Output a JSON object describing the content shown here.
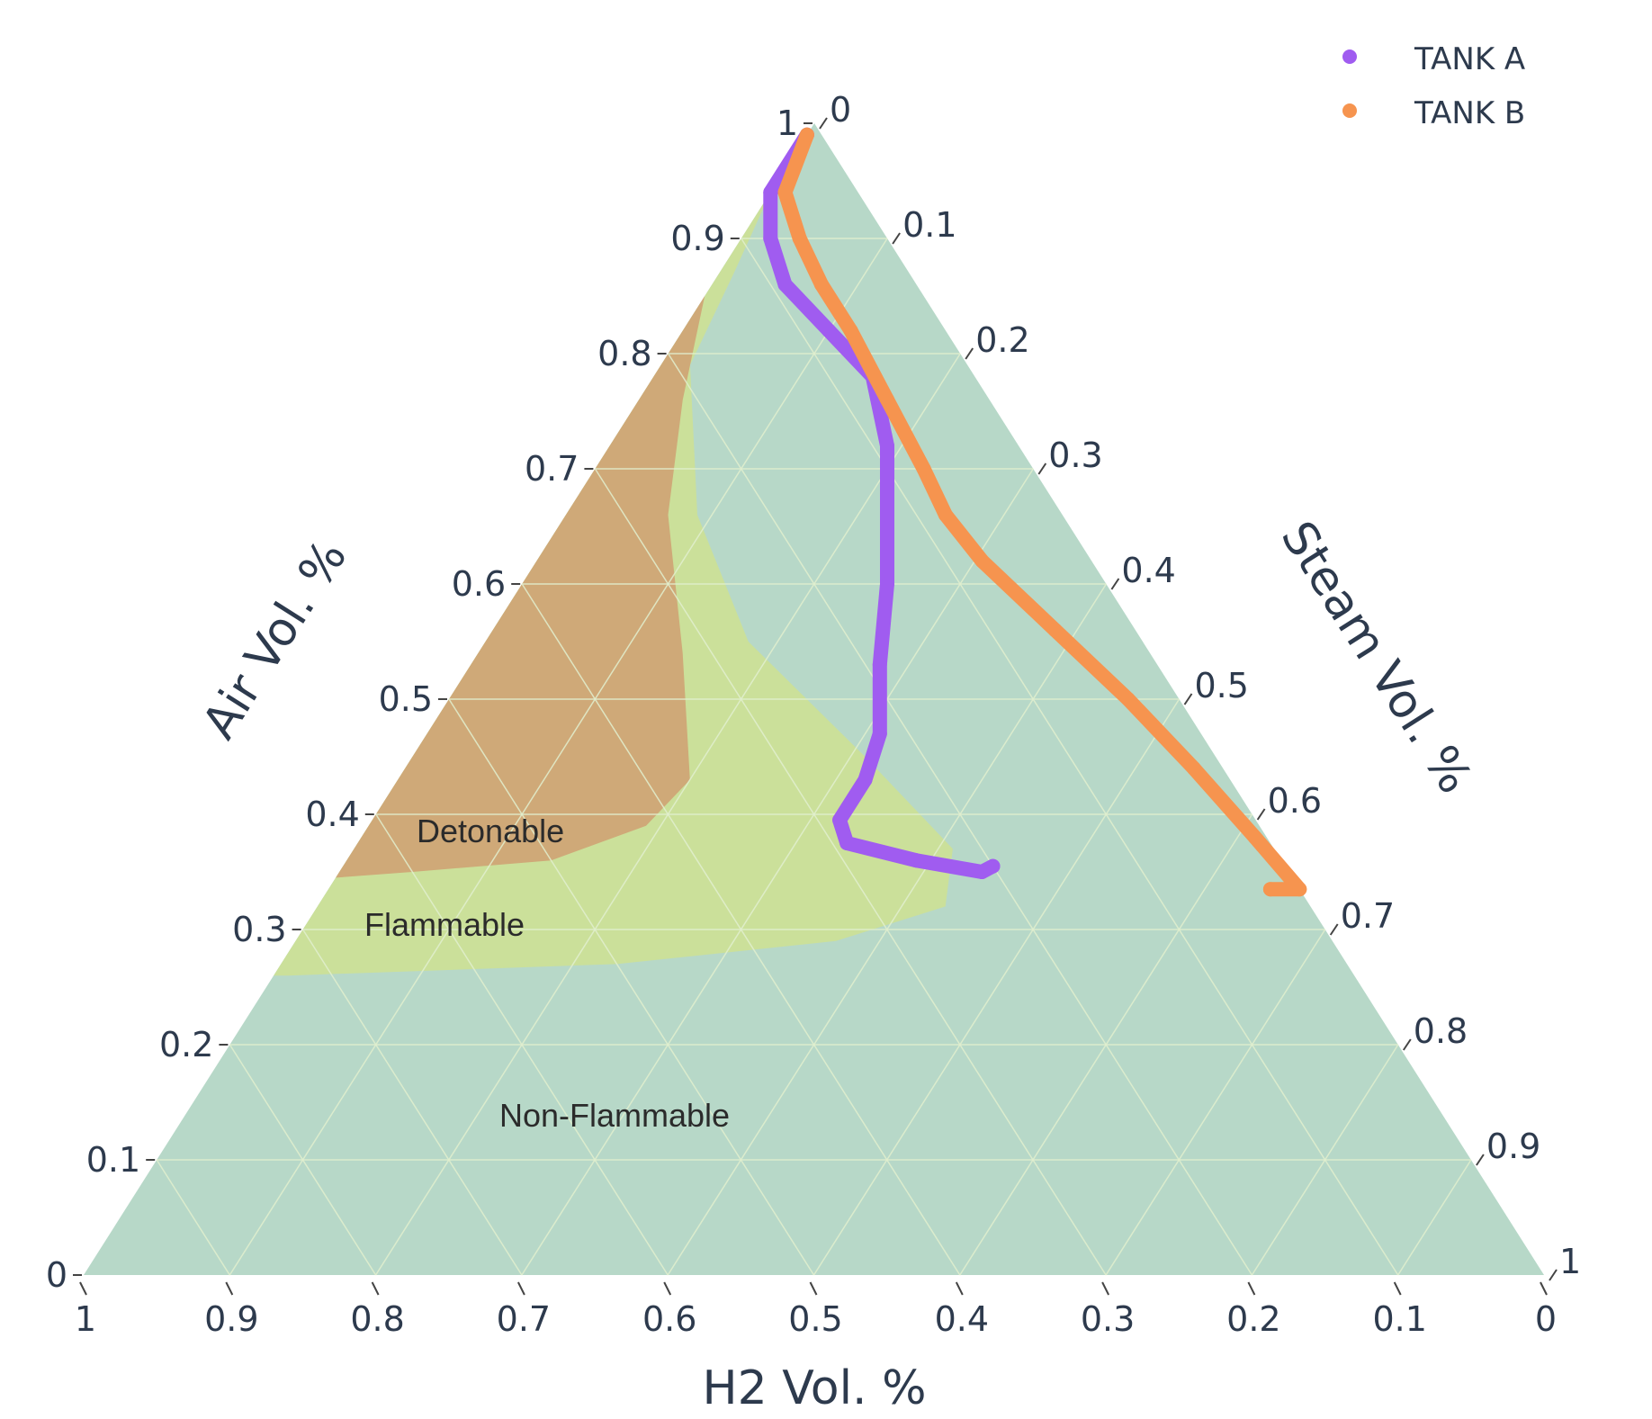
{
  "chart_data": {
    "type": "scatter",
    "subtype": "ternary",
    "axes": {
      "a": {
        "title": "Air Vol. %",
        "range": [
          0,
          1
        ],
        "ticks": [
          "0",
          "0.1",
          "0.2",
          "0.3",
          "0.4",
          "0.5",
          "0.6",
          "0.7",
          "0.8",
          "0.9",
          "1"
        ]
      },
      "b": {
        "title": "H2 Vol. %",
        "range": [
          0,
          1
        ],
        "ticks": [
          "1",
          "0.9",
          "0.8",
          "0.7",
          "0.6",
          "0.5",
          "0.4",
          "0.3",
          "0.2",
          "0.1",
          "0"
        ]
      },
      "c": {
        "title": "Steam Vol. %",
        "range": [
          0,
          1
        ],
        "ticks": [
          "0",
          "0.1",
          "0.2",
          "0.3",
          "0.4",
          "0.5",
          "0.6",
          "0.7",
          "0.8",
          "0.9",
          "1"
        ]
      }
    },
    "grid": true,
    "background_color": "#b7d8c8",
    "grid_color": "#e2f0cf",
    "regions": [
      {
        "label": "Non-Flammable",
        "color": "#b7d8c8"
      },
      {
        "label": "Flammable",
        "color": "#cbe09a",
        "boundary_abc": [
          [
            0.94,
            0.06,
            0.0
          ],
          [
            0.87,
            0.12,
            0.01
          ],
          [
            0.79,
            0.19,
            0.02
          ],
          [
            0.66,
            0.25,
            0.09
          ],
          [
            0.55,
            0.27,
            0.18
          ],
          [
            0.45,
            0.24,
            0.31
          ],
          [
            0.37,
            0.22,
            0.41
          ],
          [
            0.32,
            0.25,
            0.43
          ],
          [
            0.29,
            0.34,
            0.37
          ],
          [
            0.27,
            0.5,
            0.23
          ],
          [
            0.26,
            0.73,
            0.01
          ],
          [
            0.26,
            0.74,
            0.0
          ]
        ]
      },
      {
        "label": "Detonable",
        "color": "#cfa978",
        "boundary_abc": [
          [
            0.85,
            0.15,
            0.0
          ],
          [
            0.76,
            0.21,
            0.03
          ],
          [
            0.66,
            0.27,
            0.07
          ],
          [
            0.54,
            0.32,
            0.14
          ],
          [
            0.43,
            0.37,
            0.2
          ],
          [
            0.39,
            0.42,
            0.19
          ],
          [
            0.36,
            0.5,
            0.14
          ],
          [
            0.35,
            0.6,
            0.05
          ],
          [
            0.345,
            0.655,
            0.0
          ]
        ]
      }
    ],
    "series": [
      {
        "name": "TANK A",
        "color": "#a05cf0",
        "points": [
          [
            0.99,
            0.01,
            0.0
          ],
          [
            0.94,
            0.06,
            0.0
          ],
          [
            0.9,
            0.08,
            0.02
          ],
          [
            0.86,
            0.09,
            0.05
          ],
          [
            0.82,
            0.08,
            0.1
          ],
          [
            0.78,
            0.07,
            0.15
          ],
          [
            0.72,
            0.09,
            0.19
          ],
          [
            0.66,
            0.12,
            0.22
          ],
          [
            0.6,
            0.15,
            0.25
          ],
          [
            0.53,
            0.19,
            0.28
          ],
          [
            0.47,
            0.22,
            0.31
          ],
          [
            0.43,
            0.25,
            0.32
          ],
          [
            0.395,
            0.285,
            0.32
          ],
          [
            0.375,
            0.29,
            0.335
          ],
          [
            0.36,
            0.25,
            0.39
          ],
          [
            0.35,
            0.21,
            0.44
          ],
          [
            0.355,
            0.2,
            0.445
          ]
        ]
      },
      {
        "name": "TANK B",
        "color": "#f6944f",
        "points": [
          [
            0.99,
            0.01,
            0.0
          ],
          [
            0.94,
            0.05,
            0.01
          ],
          [
            0.9,
            0.06,
            0.04
          ],
          [
            0.86,
            0.065,
            0.075
          ],
          [
            0.82,
            0.065,
            0.115
          ],
          [
            0.76,
            0.07,
            0.17
          ],
          [
            0.7,
            0.075,
            0.225
          ],
          [
            0.66,
            0.08,
            0.26
          ],
          [
            0.62,
            0.075,
            0.305
          ],
          [
            0.56,
            0.055,
            0.385
          ],
          [
            0.5,
            0.035,
            0.465
          ],
          [
            0.44,
            0.02,
            0.54
          ],
          [
            0.38,
            0.008,
            0.612
          ],
          [
            0.335,
            0.0,
            0.665
          ],
          [
            0.335,
            0.02,
            0.645
          ]
        ]
      }
    ],
    "annotations": [
      "Detonable",
      "Flammable",
      "Non-Flammable"
    ],
    "legend": {
      "position": "top-right"
    }
  }
}
